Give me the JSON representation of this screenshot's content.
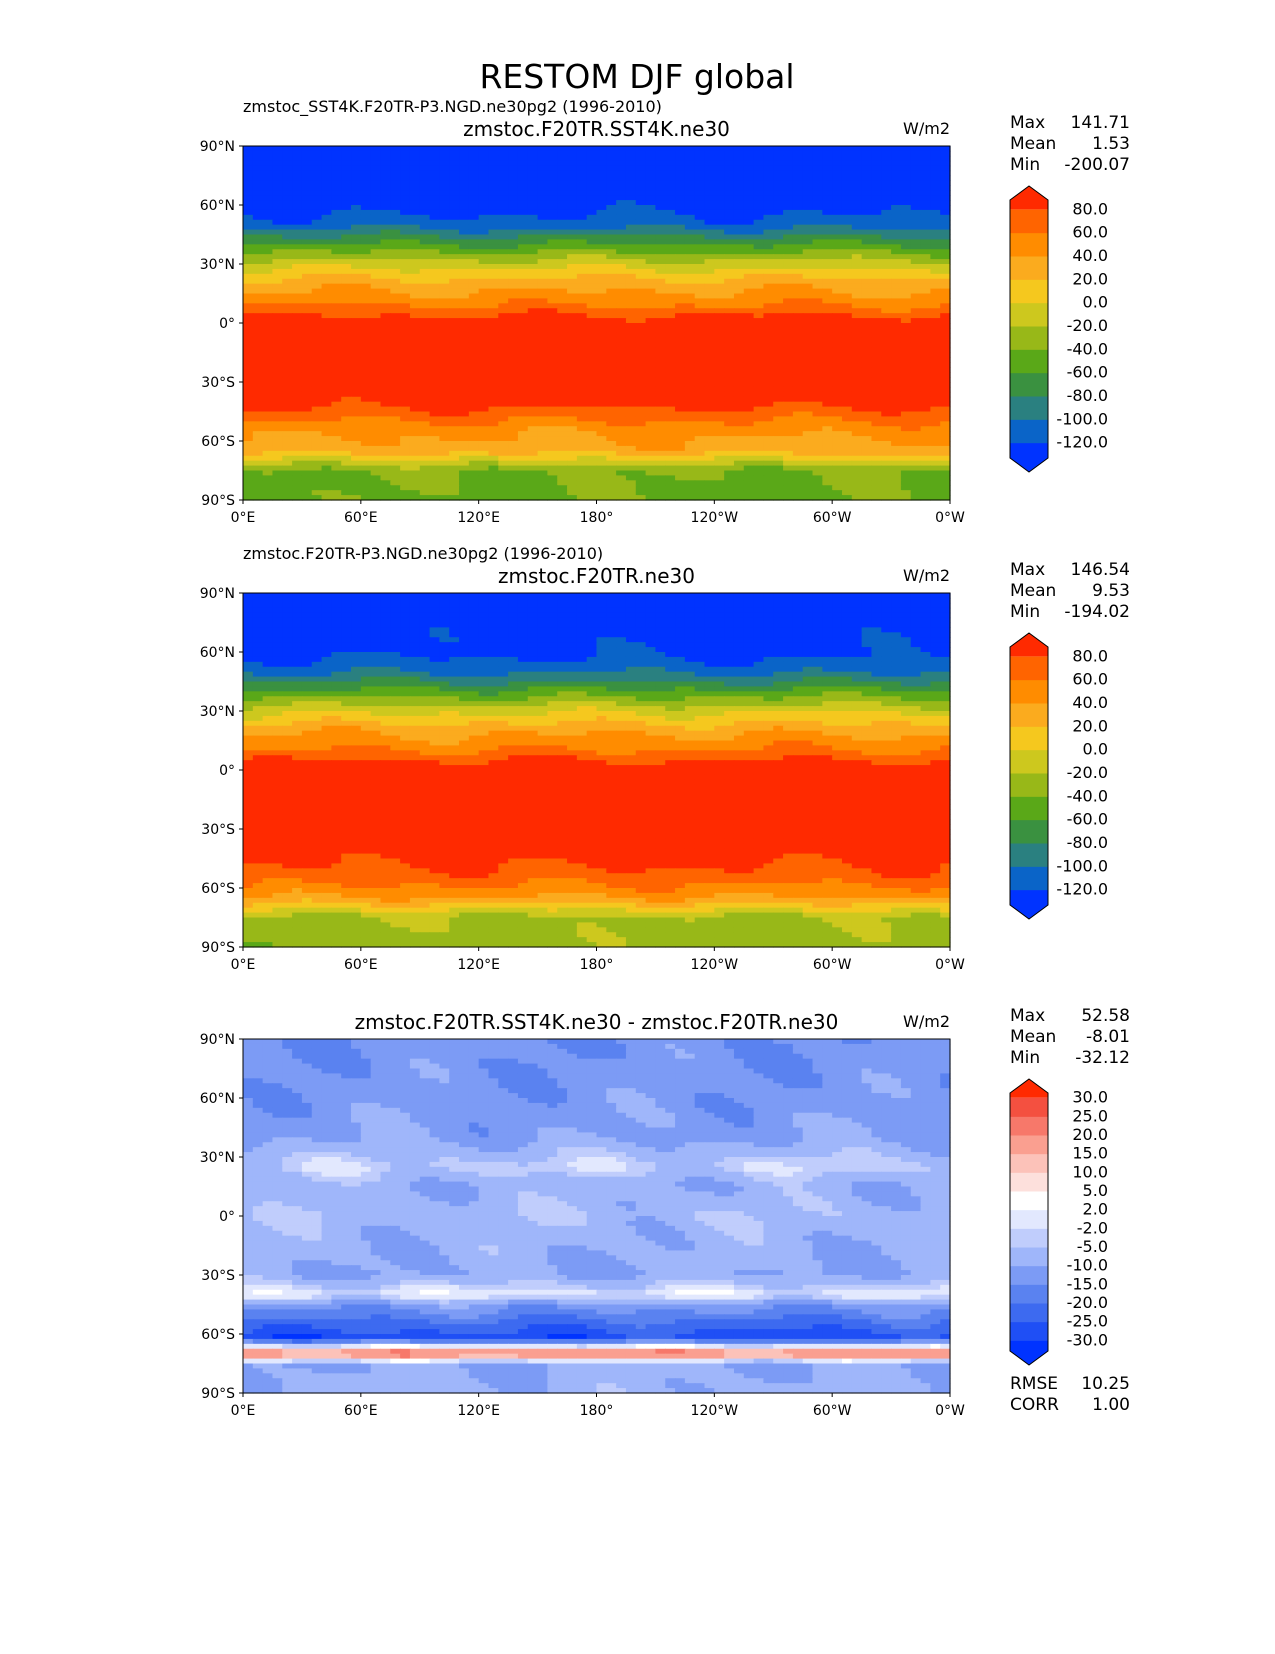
{
  "chart_data": {
    "type": "heatmap",
    "title": "RESTOM DJF global",
    "panels": [
      {
        "left_title": "zmstoc_SST4K.F20TR-P3.NGD.ne30pg2 (1996-2010)",
        "center_title": "zmstoc.F20TR.SST4K.ne30",
        "units": "W/m2",
        "stats": [
          [
            "Max",
            "141.71"
          ],
          [
            "Mean",
            "1.53"
          ],
          [
            "Min",
            "-200.07"
          ]
        ],
        "levels": [
          "-120.0",
          "-100.0",
          "-80.0",
          "-60.0",
          "-40.0",
          "-20.0",
          "0.0",
          "20.0",
          "40.0",
          "60.0",
          "80.0"
        ],
        "colors": [
          "#0033ff",
          "#0a64c8",
          "#2a8080",
          "#3a9140",
          "#5aa818",
          "#98b818",
          "#cdc81e",
          "#f5c81e",
          "#fbab1e",
          "#ff8c00",
          "#ff6400",
          "#ff2a00"
        ],
        "zonal_profile": {
          "lat": [
            -90,
            -75,
            -65,
            -55,
            -40,
            -20,
            0,
            10,
            20,
            30,
            40,
            50,
            60,
            90
          ],
          "value": [
            -45,
            -40,
            30,
            45,
            90,
            100,
            95,
            55,
            30,
            -10,
            -60,
            -110,
            -130,
            -140
          ]
        }
      },
      {
        "left_title": "zmstoc.F20TR-P3.NGD.ne30pg2 (1996-2010)",
        "center_title": "zmstoc.F20TR.ne30",
        "units": "W/m2",
        "stats": [
          [
            "Max",
            "146.54"
          ],
          [
            "Mean",
            "9.53"
          ],
          [
            "Min",
            "-194.02"
          ]
        ],
        "levels": [
          "-120.0",
          "-100.0",
          "-80.0",
          "-60.0",
          "-40.0",
          "-20.0",
          "0.0",
          "20.0",
          "40.0",
          "60.0",
          "80.0"
        ],
        "colors": [
          "#0033ff",
          "#0a64c8",
          "#2a8080",
          "#3a9140",
          "#5aa818",
          "#98b818",
          "#cdc81e",
          "#f5c81e",
          "#fbab1e",
          "#ff8c00",
          "#ff6400",
          "#ff2a00"
        ],
        "zonal_profile": {
          "lat": [
            -90,
            -75,
            -65,
            -55,
            -40,
            -20,
            0,
            10,
            20,
            30,
            40,
            50,
            60,
            90
          ],
          "value": [
            -30,
            -25,
            40,
            70,
            95,
            105,
            100,
            60,
            35,
            -5,
            -55,
            -105,
            -125,
            -140
          ]
        }
      },
      {
        "left_title": "",
        "center_title": "zmstoc.F20TR.SST4K.ne30 - zmstoc.F20TR.ne30",
        "units": "W/m2",
        "stats": [
          [
            "Max",
            "52.58"
          ],
          [
            "Mean",
            "-8.01"
          ],
          [
            "Min",
            "-32.12"
          ]
        ],
        "levels": [
          "-30.0",
          "-25.0",
          "-20.0",
          "-15.0",
          "-10.0",
          "-5.0",
          "-2.0",
          "2.0",
          "5.0",
          "10.0",
          "15.0",
          "20.0",
          "25.0",
          "30.0"
        ],
        "colors": [
          "#0033ff",
          "#1f4ff5",
          "#3d6af0",
          "#5a82f0",
          "#7c9bf5",
          "#9fb6fa",
          "#c0cdfc",
          "#e2e8fe",
          "#ffffff",
          "#fde0dc",
          "#fcc2b9",
          "#fa9f90",
          "#f7786a",
          "#f45040",
          "#ff2a00"
        ],
        "zonal_profile": {
          "lat": [
            -90,
            -75,
            -70,
            -62,
            -55,
            -45,
            -40,
            -30,
            -10,
            0,
            15,
            25,
            40,
            60,
            90
          ],
          "value": [
            -8,
            -10,
            25,
            -28,
            -22,
            -12,
            1,
            -10,
            -8,
            -6,
            -9,
            -3,
            -11,
            -13,
            -14
          ]
        },
        "rmse": [
          "RMSE",
          "10.25"
        ],
        "corr": [
          "CORR",
          "1.00"
        ]
      }
    ],
    "xticks": [
      "0°E",
      "60°E",
      "120°E",
      "180°",
      "120°W",
      "60°W",
      "0°W"
    ],
    "yticks": [
      "90°S",
      "60°S",
      "30°S",
      "0°",
      "30°N",
      "60°N",
      "90°N"
    ],
    "xlim": [
      0,
      360
    ],
    "ylim": [
      -90,
      90
    ]
  }
}
